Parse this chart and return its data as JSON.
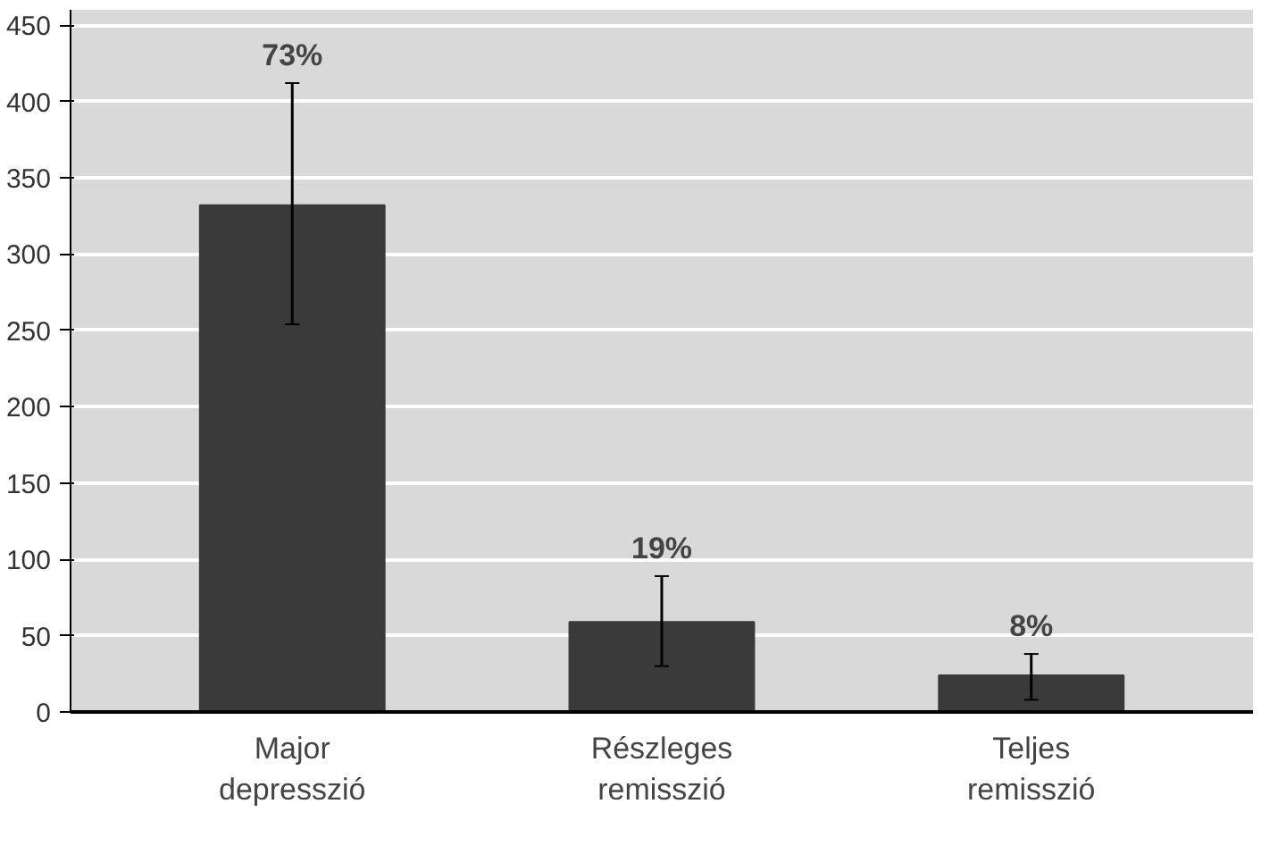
{
  "chart_data": {
    "type": "bar",
    "categories": [
      "Major\ndepresszió",
      "Részleges\nremisszió",
      "Teljes\nremisszió"
    ],
    "values": [
      332,
      59,
      24
    ],
    "errors": [
      [
        254,
        412
      ],
      [
        30,
        89
      ],
      [
        8,
        38
      ]
    ],
    "annotations": [
      {
        "text": "73%",
        "x": "Major\ndepresszió",
        "y": 412
      },
      {
        "text": "19%",
        "x": "Részleges\nremisszió",
        "y": 89
      },
      {
        "text": "8%",
        "x": "Teljes\nremisszió",
        "y": 38
      }
    ],
    "color": "#3a3a3a",
    "ylim": [
      0,
      460
    ],
    "yticks": [
      0,
      50,
      100,
      150,
      200,
      250,
      300,
      350,
      400,
      450
    ],
    "grid": "y"
  }
}
